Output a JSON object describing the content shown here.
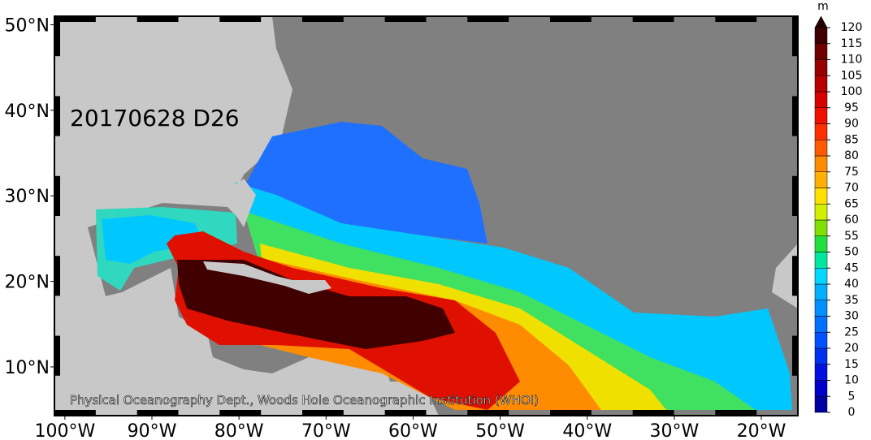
{
  "map": {
    "title": "20170628 D26",
    "credit": "Physical Oceanography Dept., Woods Hole Oceanographic Institution (WHOI)",
    "xlim": [
      -101.2,
      -15.8
    ],
    "ylim": [
      4.3,
      51
    ],
    "lon_ticks": [
      {
        "value": -100,
        "label": "100°W"
      },
      {
        "value": -90,
        "label": "90°W"
      },
      {
        "value": -80,
        "label": "80°W"
      },
      {
        "value": -70,
        "label": "70°W"
      },
      {
        "value": -60,
        "label": "60°W"
      },
      {
        "value": -50,
        "label": "50°W"
      },
      {
        "value": -40,
        "label": "40°W"
      },
      {
        "value": -30,
        "label": "30°W"
      },
      {
        "value": -20,
        "label": "20°W"
      }
    ],
    "lat_ticks": [
      {
        "value": 10,
        "label": "10°N"
      },
      {
        "value": 20,
        "label": "20°N"
      },
      {
        "value": 30,
        "label": "30°N"
      },
      {
        "value": 40,
        "label": "40°N"
      },
      {
        "value": 50,
        "label": "50°N"
      }
    ]
  },
  "colorbar": {
    "unit": "m",
    "ticks": [
      0,
      5,
      10,
      15,
      20,
      25,
      30,
      35,
      40,
      45,
      50,
      55,
      60,
      65,
      70,
      75,
      80,
      85,
      90,
      95,
      100,
      105,
      110,
      115,
      120
    ],
    "colors": [
      "#0000a0",
      "#0000c8",
      "#0010e0",
      "#0030f0",
      "#0050ff",
      "#0070ff",
      "#0090ff",
      "#00b0ff",
      "#00d8ff",
      "#00e8a0",
      "#20e040",
      "#80e000",
      "#d0f000",
      "#ffe000",
      "#ffb000",
      "#ff8c00",
      "#ff5a00",
      "#ff3000",
      "#f01000",
      "#d80000",
      "#b80000",
      "#980000",
      "#700000",
      "#400000",
      "#200000"
    ]
  }
}
